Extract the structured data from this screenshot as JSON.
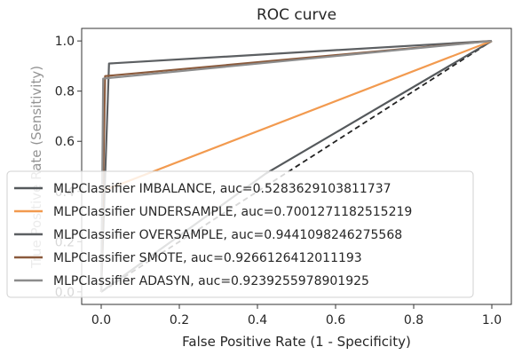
{
  "chart_data": {
    "type": "line",
    "title": "ROC curve",
    "xlabel": "False Positive Rate (1 - Specificity)",
    "ylabel": "True Positive Rate (Sensitivity)",
    "xlim": [
      -0.05,
      1.05
    ],
    "ylim": [
      -0.05,
      1.05
    ],
    "xticks": [
      "0.0",
      "0.2",
      "0.4",
      "0.6",
      "0.8",
      "1.0"
    ],
    "yticks": [
      "0.0",
      "0.2",
      "0.4",
      "0.6",
      "0.8",
      "1.0"
    ],
    "xtick_values": [
      0,
      0.2,
      0.4,
      0.6,
      0.8,
      1.0
    ],
    "ytick_values": [
      0,
      0.2,
      0.4,
      0.6,
      0.8,
      1.0
    ],
    "grid": false,
    "legend_location": "lower-left",
    "series": [
      {
        "name": "MLPClassifier IMBALANCE, auc=0.5283629103811737",
        "color": "#55595c",
        "x": [
          0,
          0.42,
          1.0
        ],
        "y": [
          0,
          0.47,
          1.0
        ]
      },
      {
        "name": "MLPClassifier UNDERSAMPLE, auc=0.7001271182515219",
        "color": "#f29a4f",
        "x": [
          0,
          1.0
        ],
        "y": [
          0.4,
          1.0
        ]
      },
      {
        "name": "MLPClassifier OVERSAMPLE, auc=0.9441098246275568",
        "color": "#5c5f62",
        "x": [
          0,
          0.02,
          1.0
        ],
        "y": [
          0,
          0.91,
          1.0
        ]
      },
      {
        "name": "MLPClassifier SMOTE, auc=0.9266126412011193",
        "color": "#8a5a3c",
        "x": [
          0,
          0.01,
          1.0
        ],
        "y": [
          0,
          0.86,
          1.0
        ]
      },
      {
        "name": "MLPClassifier  ADASYN, auc=0.9239255978901925",
        "color": "#8c8c8c",
        "x": [
          0,
          0.005,
          1.0
        ],
        "y": [
          0,
          0.85,
          1.0
        ]
      }
    ],
    "reference_line": {
      "x": [
        0,
        1
      ],
      "y": [
        0,
        1
      ],
      "color": "#222222",
      "style": "dashed"
    }
  }
}
